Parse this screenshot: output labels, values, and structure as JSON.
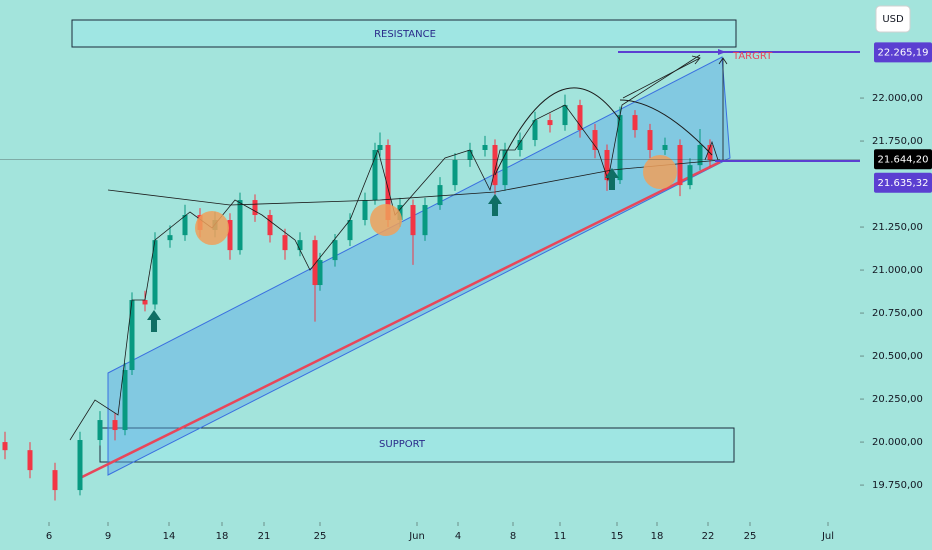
{
  "chart_data": {
    "type": "candlestick",
    "currency": "USD",
    "annotations": {
      "resistance": "RESISTANCE",
      "support": "SUPPORT",
      "target": "TARGRT"
    },
    "up_color": "#089981",
    "down_color": "#f23645",
    "x": [
      1,
      6,
      11,
      16,
      20,
      23,
      25,
      26.4,
      29,
      31,
      34,
      37,
      40,
      43,
      46,
      48,
      51,
      54,
      57,
      60,
      63,
      64,
      67,
      70,
      73,
      75,
      76,
      77.6,
      80,
      82.6,
      85,
      88,
      91,
      94,
      97,
      99,
      101,
      104,
      107,
      110,
      113,
      116,
      119,
      121.4,
      124,
      127,
      130,
      133,
      136,
      138,
      140,
      142
    ],
    "open": [
      20000,
      19953,
      19837,
      19721,
      20012,
      20128,
      20070,
      20419,
      20826,
      20800,
      21174,
      21203,
      21320,
      21233,
      21291,
      21116,
      21407,
      21320,
      21203,
      21116,
      21174,
      20913,
      21058,
      21174,
      21291,
      21407,
      21698,
      21727,
      21291,
      21378,
      21203,
      21378,
      21494,
      21640,
      21698,
      21727,
      21494,
      21698,
      21756,
      21872,
      21843,
      21959,
      21814,
      21698,
      21523,
      21901,
      21814,
      21698,
      21727,
      21494,
      21610,
      21727
    ],
    "high": [
      20060,
      20000,
      19880,
      20060,
      20180,
      20170,
      20460,
      20870,
      20880,
      21220,
      21260,
      21380,
      21360,
      21340,
      21330,
      21450,
      21440,
      21350,
      21240,
      21220,
      21200,
      21100,
      21210,
      21330,
      21450,
      21740,
      21800,
      21760,
      21420,
      21410,
      21420,
      21540,
      21680,
      21740,
      21780,
      21760,
      21740,
      21800,
      21920,
      21910,
      22020,
      21990,
      21850,
      21730,
      21950,
      21930,
      21850,
      21770,
      21760,
      21650,
      21820,
      21760
    ],
    "low": [
      19900,
      19790,
      19660,
      19690,
      19980,
      20010,
      20040,
      20390,
      20760,
      20770,
      21130,
      21170,
      21190,
      21190,
      21060,
      21090,
      21280,
      21160,
      21060,
      21080,
      20700,
      20880,
      21020,
      21140,
      21260,
      21380,
      21660,
      21250,
      21250,
      21030,
      21170,
      21350,
      21460,
      21600,
      21660,
      21440,
      21460,
      21660,
      21720,
      21800,
      21810,
      21770,
      21650,
      21460,
      21500,
      21770,
      21650,
      21670,
      21430,
      21470,
      21580,
      21600
    ],
    "close": [
      19953,
      19837,
      19721,
      20012,
      20128,
      20070,
      20419,
      20826,
      20800,
      21174,
      21203,
      21320,
      21233,
      21291,
      21116,
      21407,
      21320,
      21203,
      21116,
      21174,
      20913,
      21058,
      21174,
      21291,
      21407,
      21698,
      21727,
      21291,
      21378,
      21203,
      21378,
      21494,
      21640,
      21698,
      21727,
      21494,
      21698,
      21756,
      21872,
      21843,
      21959,
      21814,
      21698,
      21523,
      21901,
      21814,
      21698,
      21727,
      21494,
      21610,
      21727,
      21640
    ],
    "xlim": [
      0,
      172
    ],
    "xticks": [
      {
        "value": 9.8,
        "label": "6"
      },
      {
        "value": 21.6,
        "label": "9"
      },
      {
        "value": 33.8,
        "label": "14"
      },
      {
        "value": 44.4,
        "label": "18"
      },
      {
        "value": 52.8,
        "label": "21"
      },
      {
        "value": 64,
        "label": "25"
      },
      {
        "value": 83.4,
        "label": "Jun"
      },
      {
        "value": 91.6,
        "label": "4"
      },
      {
        "value": 102.6,
        "label": "8"
      },
      {
        "value": 112,
        "label": "11"
      },
      {
        "value": 123.4,
        "label": "15"
      },
      {
        "value": 131.4,
        "label": "18"
      },
      {
        "value": 141.6,
        "label": "22"
      },
      {
        "value": 150,
        "label": "25"
      },
      {
        "value": 165.6,
        "label": "Jul"
      }
    ],
    "ylim": [
      19547,
      22570
    ],
    "yticks": [
      {
        "value": 22000,
        "label": "22.000,00"
      },
      {
        "value": 21750,
        "label": "21.750,00"
      },
      {
        "value": 21250,
        "label": "21.250,00"
      },
      {
        "value": 21000,
        "label": "21.000,00"
      },
      {
        "value": 20750,
        "label": "20.750,00"
      },
      {
        "value": 20500,
        "label": "20.500,00"
      },
      {
        "value": 20250,
        "label": "20.250,00"
      },
      {
        "value": 20000,
        "label": "20.000,00"
      },
      {
        "value": 19750,
        "label": "19.750,00"
      }
    ],
    "price_labels": [
      {
        "value": 22265.19,
        "label": "22.265,19",
        "color": "#5b3fd1"
      },
      {
        "value": 21644.2,
        "label": "21.644,20",
        "color": "#000000"
      },
      {
        "value": 21635.32,
        "label": "21.635,32",
        "color": "#5b3fd1"
      }
    ]
  }
}
